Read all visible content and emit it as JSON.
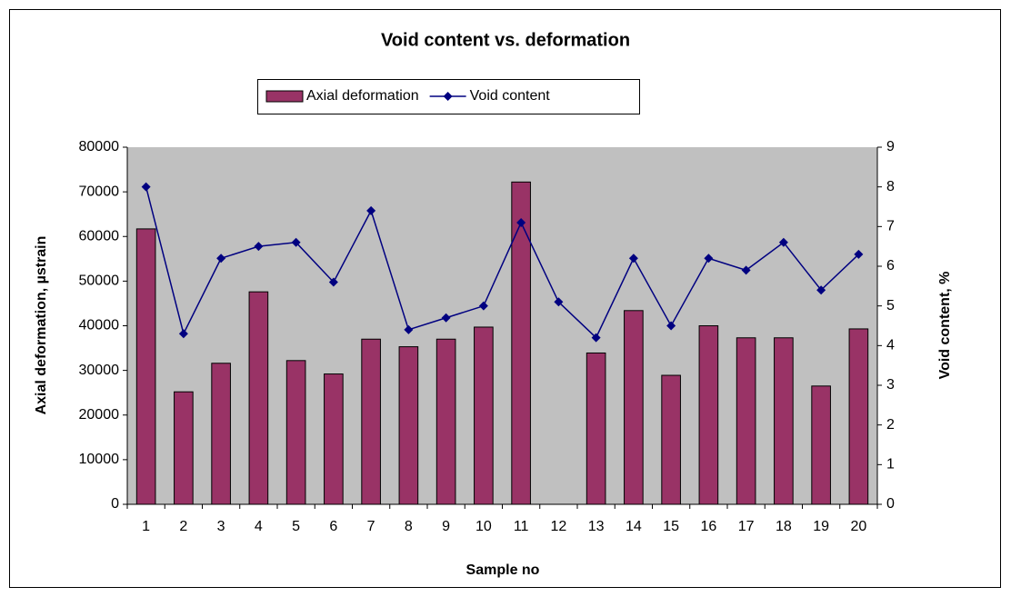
{
  "chart_data": {
    "type": "bar_line",
    "title": "Void content vs. deformation",
    "x_label": "Sample no",
    "y_label": "Axial deformation,  µstrain",
    "y2_label": "Void content, %",
    "categories": [
      "1",
      "2",
      "3",
      "4",
      "5",
      "6",
      "7",
      "8",
      "9",
      "10",
      "11",
      "12",
      "13",
      "14",
      "15",
      "16",
      "17",
      "18",
      "19",
      "20"
    ],
    "series": [
      {
        "name": "Axial deformation",
        "color": "#993366",
        "type": "bar",
        "values": [
          61700,
          25200,
          31600,
          47600,
          32200,
          29200,
          37000,
          35300,
          37000,
          39700,
          72200,
          null,
          33900,
          43400,
          28900,
          40000,
          37300,
          37300,
          26500,
          39300
        ]
      },
      {
        "name": "Void content",
        "color": "#000080",
        "type": "line",
        "axis": "y2",
        "values": [
          8.0,
          4.3,
          6.2,
          6.5,
          6.6,
          5.6,
          7.4,
          4.4,
          4.7,
          5.0,
          7.1,
          5.1,
          4.2,
          6.2,
          4.5,
          6.2,
          5.9,
          6.6,
          5.4,
          6.3
        ]
      }
    ],
    "ylim": [
      0,
      80000
    ],
    "yticks": [
      0,
      10000,
      20000,
      30000,
      40000,
      50000,
      60000,
      70000,
      80000
    ],
    "y2lim": [
      0,
      9
    ],
    "y2ticks": [
      0,
      1,
      2,
      3,
      4,
      5,
      6,
      7,
      8,
      9
    ],
    "plot_background": "#c0c0c0",
    "legend": "top",
    "grid": false
  }
}
